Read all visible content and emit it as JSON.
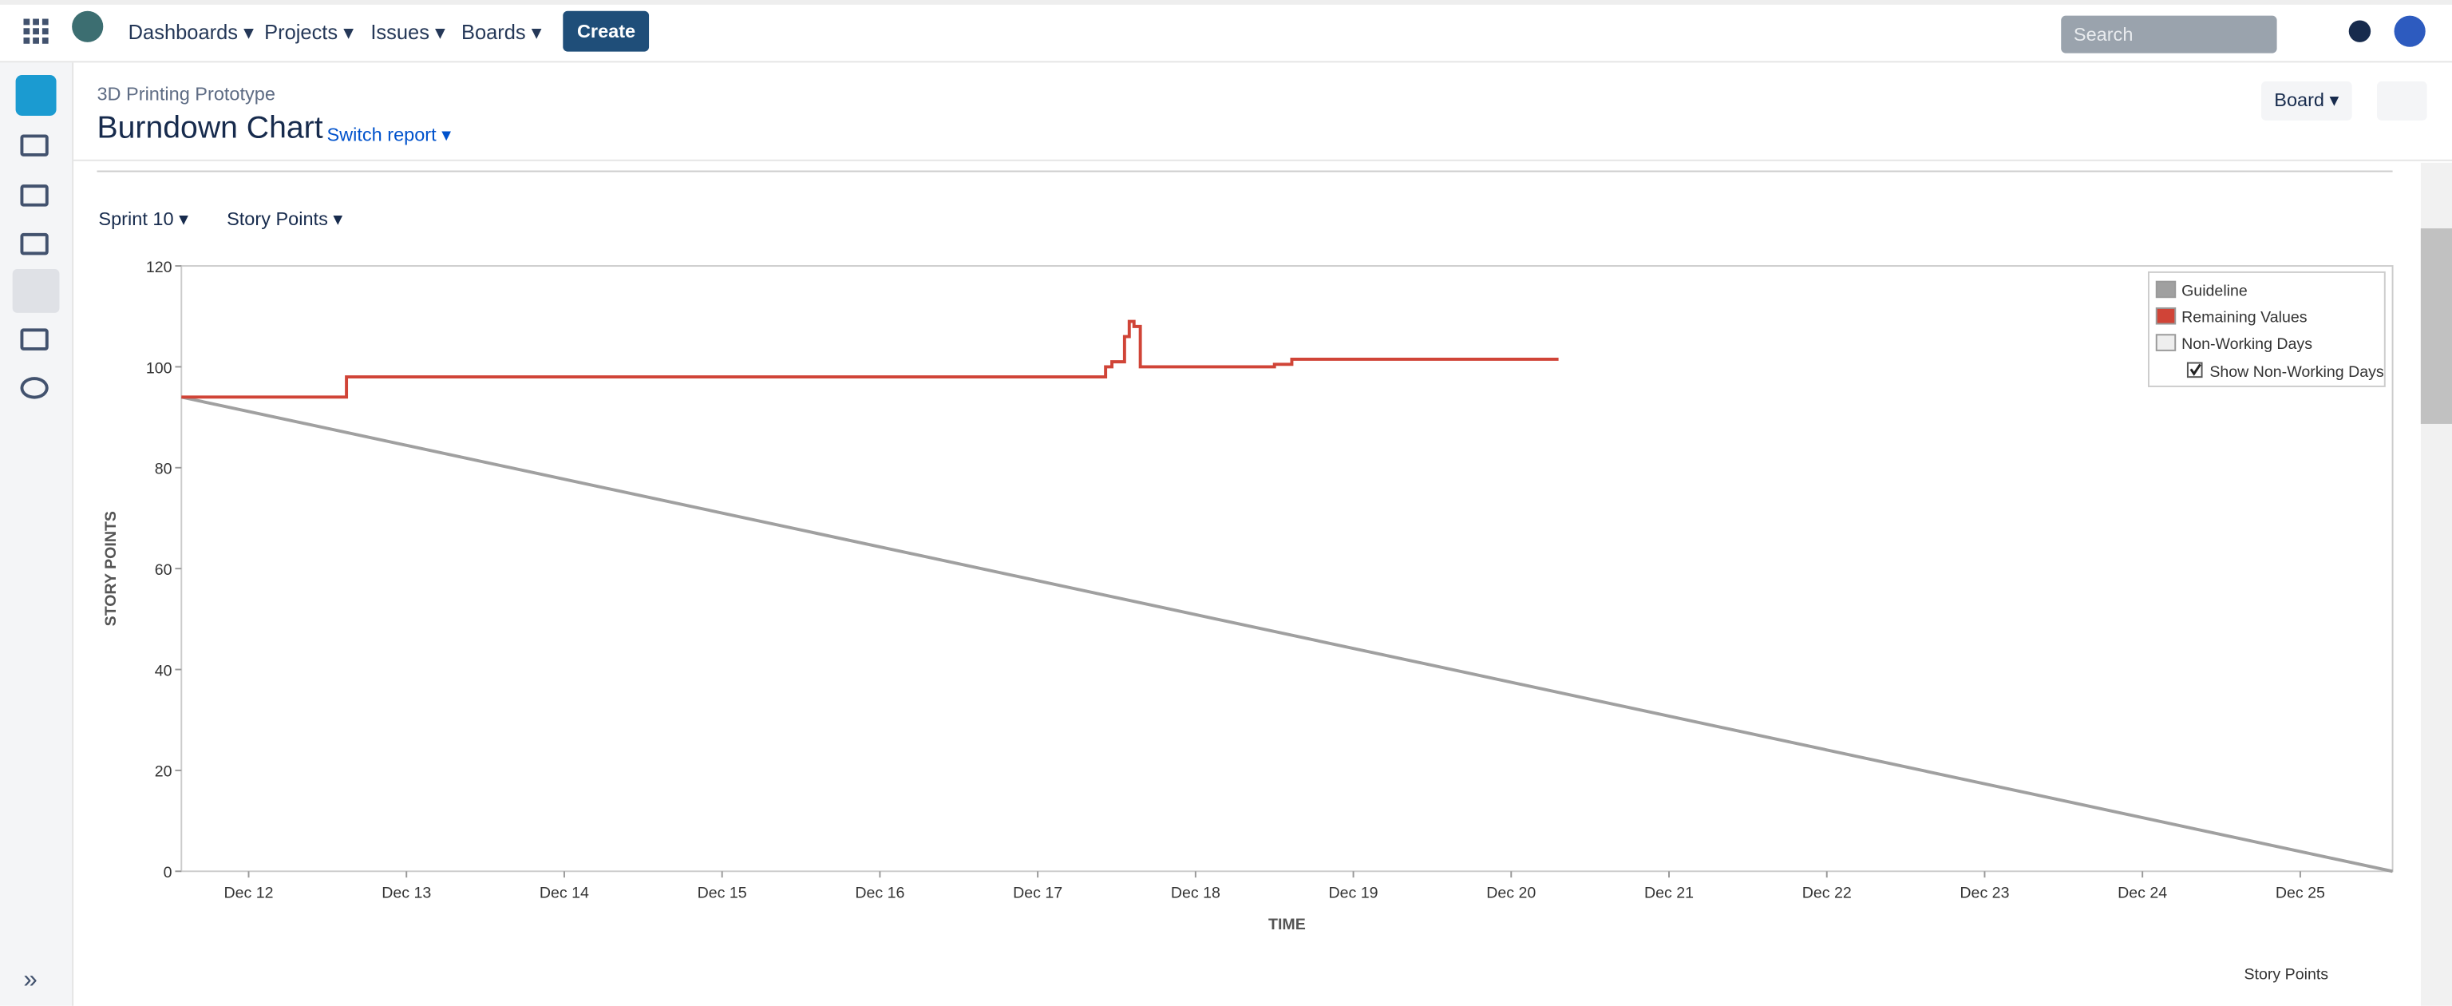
{
  "nav": {
    "items": [
      "Dashboards",
      "Projects",
      "Issues",
      "Boards"
    ],
    "create": "Create",
    "search": "Search"
  },
  "header": {
    "project": "3D Printing Prototype",
    "title": "Burndown Chart",
    "switch": "Switch report",
    "board": "Board"
  },
  "filters": {
    "sprint": "Sprint 10",
    "estimate": "Story Points"
  },
  "footer_label": "Story Points",
  "chart_data": {
    "type": "line",
    "x_label": "TIME",
    "y_label": "STORY POINTS",
    "xlim": [
      11.574,
      25.585
    ],
    "ylim": [
      0,
      120
    ],
    "xticks": [
      {
        "value": 12,
        "label": "Dec 12"
      },
      {
        "value": 13,
        "label": "Dec 13"
      },
      {
        "value": 14,
        "label": "Dec 14"
      },
      {
        "value": 15,
        "label": "Dec 15"
      },
      {
        "value": 16,
        "label": "Dec 16"
      },
      {
        "value": 17,
        "label": "Dec 17"
      },
      {
        "value": 18,
        "label": "Dec 18"
      },
      {
        "value": 19,
        "label": "Dec 19"
      },
      {
        "value": 20,
        "label": "Dec 20"
      },
      {
        "value": 21,
        "label": "Dec 21"
      },
      {
        "value": 22,
        "label": "Dec 22"
      },
      {
        "value": 23,
        "label": "Dec 23"
      },
      {
        "value": 24,
        "label": "Dec 24"
      },
      {
        "value": 25,
        "label": "Dec 25"
      }
    ],
    "yticks": [
      0,
      20,
      40,
      60,
      80,
      100,
      120
    ],
    "legend_position": "upper right",
    "legend_option": "Show Non-Working Days",
    "series": [
      {
        "name": "Guideline",
        "color": "#a0a0a0",
        "step": false,
        "x": [
          11.574,
          25.585
        ],
        "values": [
          94,
          0
        ]
      },
      {
        "name": "Remaining Values",
        "color": "#d04437",
        "step": true,
        "x": [
          11.574,
          12.62,
          17.43,
          17.47,
          17.55,
          17.58,
          17.61,
          17.65,
          18.5,
          18.61,
          20.3
        ],
        "values": [
          94,
          98,
          100,
          101,
          106,
          109,
          108,
          100,
          100.5,
          101.5,
          101.5
        ]
      },
      {
        "name": "Non-Working Days",
        "color": "#eeeeee",
        "step": false,
        "x": [],
        "values": []
      }
    ]
  }
}
